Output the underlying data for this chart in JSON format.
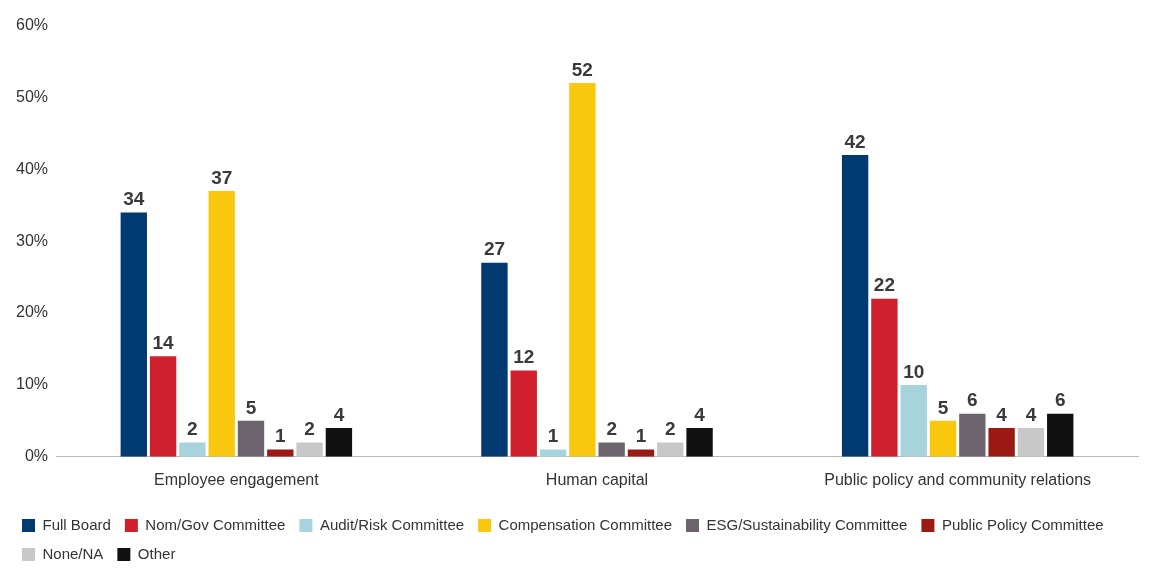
{
  "chart_data": {
    "type": "bar",
    "categories": [
      "Employee engagement",
      "Human capital",
      "Public policy and community relations"
    ],
    "series": [
      {
        "name": "Full Board",
        "color": "#003a70",
        "values": [
          34,
          27,
          42
        ]
      },
      {
        "name": "Nom/Gov Committee",
        "color": "#d0202e",
        "values": [
          14,
          12,
          22
        ]
      },
      {
        "name": "Audit/Risk Committee",
        "color": "#a7d3dc",
        "values": [
          2,
          1,
          10
        ]
      },
      {
        "name": "Compensation Committee",
        "color": "#f9c80e",
        "values": [
          37,
          52,
          5
        ]
      },
      {
        "name": "ESG/Sustainability Committee",
        "color": "#6e6470",
        "values": [
          5,
          2,
          6
        ]
      },
      {
        "name": "Public Policy Committee",
        "color": "#9b1b14",
        "values": [
          1,
          1,
          4
        ]
      },
      {
        "name": "None/NA",
        "color": "#c8c8c8",
        "values": [
          2,
          2,
          4
        ]
      },
      {
        "name": "Other",
        "color": "#111111",
        "values": [
          4,
          4,
          6
        ]
      }
    ],
    "ylim": [
      0,
      60
    ],
    "yticks": [
      {
        "value": 0,
        "label": "0%"
      },
      {
        "value": 10,
        "label": "10%"
      },
      {
        "value": 20,
        "label": "20%"
      },
      {
        "value": 30,
        "label": "30%"
      },
      {
        "value": 40,
        "label": "40%"
      },
      {
        "value": 50,
        "label": "50%"
      },
      {
        "value": 60,
        "label": "60%"
      }
    ],
    "grid": false,
    "legend": "bottom",
    "data_labels": true
  }
}
